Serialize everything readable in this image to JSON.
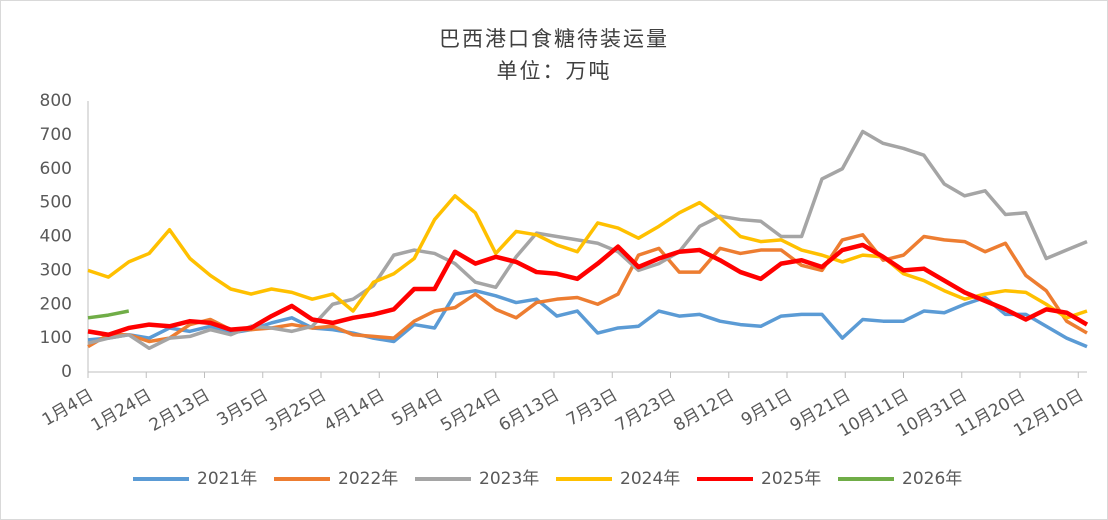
{
  "chart_data": {
    "type": "line",
    "title": "巴西港口食糖待装运量",
    "subtitle": "单位：万吨",
    "x": [
      0,
      7,
      14,
      21,
      28,
      35,
      42,
      49,
      56,
      63,
      70,
      77,
      84,
      91,
      98,
      105,
      112,
      119,
      126,
      133,
      140,
      147,
      154,
      161,
      168,
      175,
      182,
      189,
      196,
      203,
      210,
      217,
      224,
      231,
      238,
      245,
      252,
      259,
      266,
      273,
      280,
      287,
      294,
      301,
      308,
      315,
      322,
      329,
      336,
      343
    ],
    "xlim": [
      0,
      343
    ],
    "xticks": [
      {
        "value": 0,
        "label": "1月4日"
      },
      {
        "value": 20,
        "label": "1月24日"
      },
      {
        "value": 40,
        "label": "2月13日"
      },
      {
        "value": 60,
        "label": "3月5日"
      },
      {
        "value": 80,
        "label": "3月25日"
      },
      {
        "value": 100,
        "label": "4月14日"
      },
      {
        "value": 120,
        "label": "5月4日"
      },
      {
        "value": 140,
        "label": "5月24日"
      },
      {
        "value": 160,
        "label": "6月13日"
      },
      {
        "value": 180,
        "label": "7月3日"
      },
      {
        "value": 200,
        "label": "7月23日"
      },
      {
        "value": 220,
        "label": "8月12日"
      },
      {
        "value": 240,
        "label": "9月1日"
      },
      {
        "value": 260,
        "label": "9月21日"
      },
      {
        "value": 280,
        "label": "10月11日"
      },
      {
        "value": 300,
        "label": "10月31日"
      },
      {
        "value": 320,
        "label": "11月20日"
      },
      {
        "value": 340,
        "label": "12月10日"
      }
    ],
    "ylim": [
      0,
      800
    ],
    "yticks": [
      0,
      100,
      200,
      300,
      400,
      500,
      600,
      700,
      800
    ],
    "legend": "bottom",
    "series": [
      {
        "name": "2021年",
        "color": "#5b9bd5",
        "values": [
          95,
          100,
          110,
          100,
          130,
          120,
          135,
          115,
          125,
          145,
          160,
          130,
          125,
          115,
          100,
          90,
          140,
          130,
          230,
          240,
          225,
          205,
          215,
          165,
          180,
          115,
          130,
          135,
          180,
          165,
          170,
          150,
          140,
          135,
          165,
          170,
          170,
          100,
          155,
          150,
          150,
          180,
          175,
          200,
          220,
          170,
          170,
          135,
          100,
          75
        ]
      },
      {
        "name": "2022年",
        "color": "#ed7d31",
        "values": [
          75,
          110,
          110,
          90,
          100,
          140,
          155,
          125,
          125,
          130,
          140,
          130,
          135,
          110,
          105,
          100,
          150,
          180,
          190,
          230,
          185,
          160,
          205,
          215,
          220,
          200,
          230,
          345,
          365,
          295,
          295,
          365,
          350,
          360,
          360,
          315,
          300,
          390,
          405,
          330,
          345,
          400,
          390,
          385,
          355,
          380,
          285,
          240,
          150,
          115
        ]
      },
      {
        "name": "2023年",
        "color": "#a5a5a5",
        "values": [
          85,
          100,
          110,
          70,
          100,
          105,
          125,
          110,
          135,
          130,
          120,
          135,
          200,
          215,
          255,
          345,
          360,
          350,
          320,
          265,
          250,
          340,
          410,
          400,
          390,
          380,
          355,
          300,
          320,
          355,
          430,
          460,
          450,
          445,
          400,
          400,
          570,
          600,
          710,
          675,
          660,
          640,
          555,
          520,
          535,
          465,
          470,
          335,
          360,
          385
        ]
      },
      {
        "name": "2024年",
        "color": "#ffc000",
        "values": [
          300,
          280,
          325,
          350,
          420,
          335,
          285,
          245,
          230,
          245,
          235,
          215,
          230,
          180,
          265,
          290,
          335,
          450,
          520,
          470,
          350,
          415,
          405,
          375,
          355,
          440,
          425,
          395,
          430,
          470,
          500,
          455,
          400,
          385,
          390,
          360,
          345,
          325,
          345,
          340,
          290,
          270,
          240,
          215,
          230,
          240,
          235,
          200,
          160,
          180
        ]
      },
      {
        "name": "2025年",
        "color": "#ff0000",
        "values": [
          120,
          110,
          130,
          140,
          135,
          150,
          145,
          125,
          130,
          165,
          195,
          155,
          145,
          160,
          170,
          185,
          245,
          245,
          355,
          320,
          340,
          325,
          295,
          290,
          275,
          320,
          370,
          310,
          335,
          355,
          360,
          330,
          295,
          275,
          320,
          330,
          310,
          360,
          375,
          340,
          300,
          305,
          270,
          235,
          210,
          185,
          155,
          185,
          175,
          140
        ]
      },
      {
        "name": "2026年",
        "color": "#70ad47",
        "values": [
          160,
          168,
          180,
          null,
          null,
          null,
          null,
          null,
          null,
          null,
          null,
          null,
          null,
          null,
          null,
          null,
          null,
          null,
          null,
          null,
          null,
          null,
          null,
          null,
          null,
          null,
          null,
          null,
          null,
          null,
          null,
          null,
          null,
          null,
          null,
          null,
          null,
          null,
          null,
          null,
          null,
          null,
          null,
          null,
          null,
          null,
          null,
          null,
          null,
          null
        ]
      }
    ]
  }
}
